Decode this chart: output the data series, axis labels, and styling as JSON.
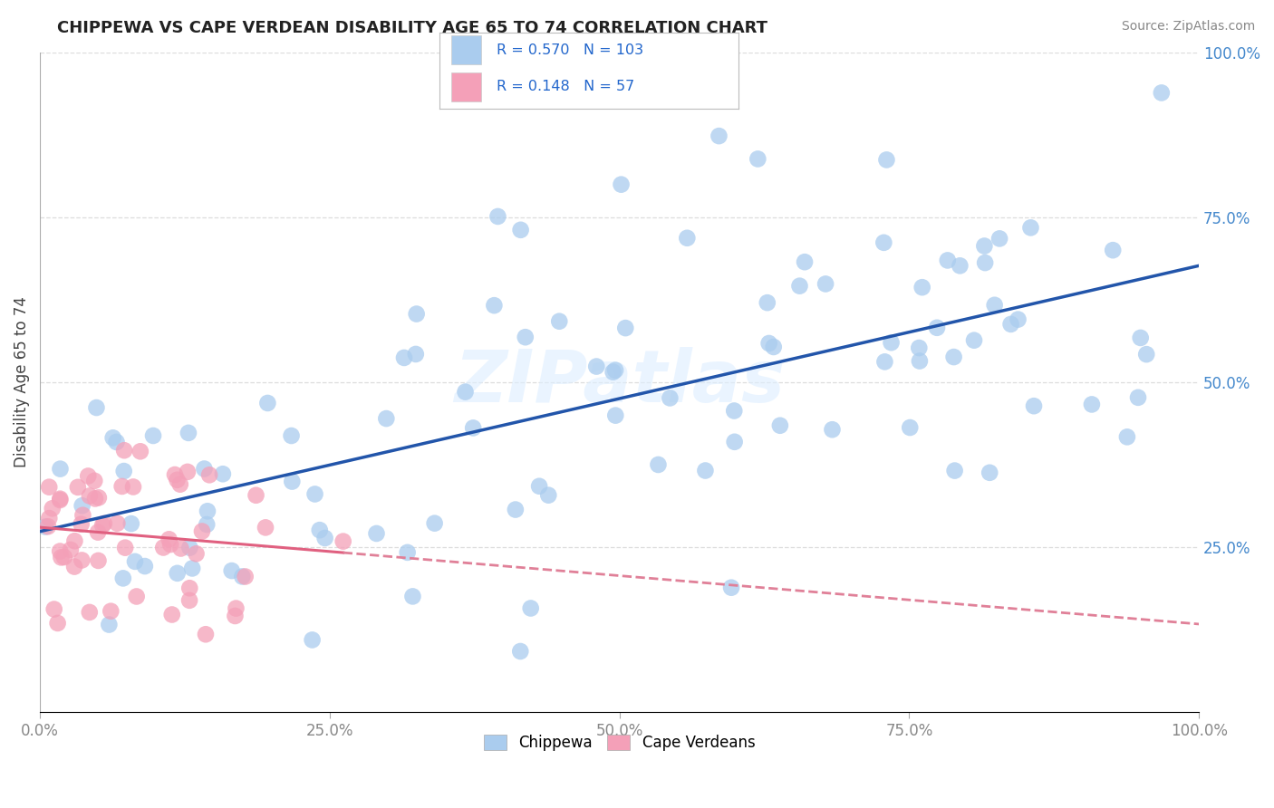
{
  "title": "CHIPPEWA VS CAPE VERDEAN DISABILITY AGE 65 TO 74 CORRELATION CHART",
  "source": "Source: ZipAtlas.com",
  "ylabel": "Disability Age 65 to 74",
  "xlabel": "",
  "xlim": [
    0.0,
    1.0
  ],
  "ylim": [
    0.0,
    1.0
  ],
  "xtick_labels": [
    "0.0%",
    "25.0%",
    "50.0%",
    "75.0%",
    "100.0%"
  ],
  "xtick_vals": [
    0.0,
    0.25,
    0.5,
    0.75,
    1.0
  ],
  "ytick_labels": [
    "25.0%",
    "50.0%",
    "75.0%",
    "100.0%"
  ],
  "ytick_vals": [
    0.25,
    0.5,
    0.75,
    1.0
  ],
  "chippewa_R": 0.57,
  "chippewa_N": 103,
  "capeverdean_R": 0.148,
  "capeverdean_N": 57,
  "chippewa_color": "#aaccee",
  "capeverdean_color": "#f4a0b8",
  "chippewa_line_color": "#2255aa",
  "capeverdean_line_color": "#e06080",
  "capeverdean_line_dash_color": "#e08098",
  "legend_text_color": "#2266cc",
  "watermark": "ZIPatlas",
  "background_color": "#ffffff",
  "grid_color": "#dddddd",
  "title_color": "#222222",
  "source_color": "#888888",
  "right_tick_color": "#4488cc",
  "left_tick_color": "#888888"
}
